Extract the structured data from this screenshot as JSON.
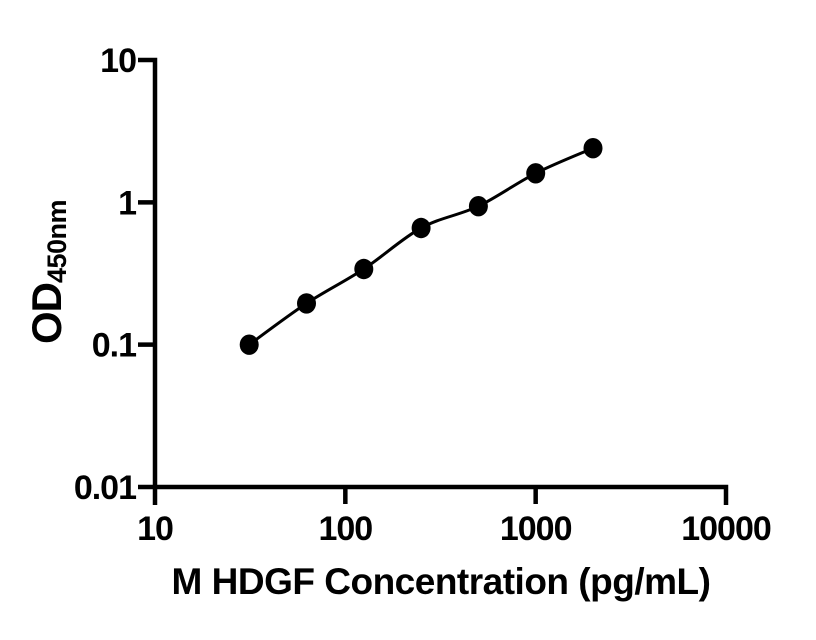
{
  "figure": {
    "background_color": "#ffffff",
    "foreground_color": "#000000"
  },
  "chart_data": {
    "type": "scatter",
    "title": "",
    "xlabel": "M HDGF Concentration (pg/mL)",
    "ylabel_main": "OD",
    "ylabel_sub": "450nm",
    "xscale": "log",
    "yscale": "log",
    "xlim": [
      10,
      10000
    ],
    "ylim": [
      0.01,
      10
    ],
    "grid": false,
    "legend_position": "none",
    "marker_style": "filled-circle",
    "marker_color": "#000000",
    "line_color": "#000000",
    "x_ticks": [
      {
        "value": 10,
        "label": "10"
      },
      {
        "value": 100,
        "label": "100"
      },
      {
        "value": 1000,
        "label": "1000"
      },
      {
        "value": 10000,
        "label": "10000"
      }
    ],
    "y_ticks": [
      {
        "value": 10,
        "label": "10"
      },
      {
        "value": 1,
        "label": "1"
      },
      {
        "value": 0.1,
        "label": "0.1"
      },
      {
        "value": 0.01,
        "label": "0.01"
      }
    ],
    "points": [
      {
        "x": 31.25,
        "y": 0.1
      },
      {
        "x": 62.5,
        "y": 0.195
      },
      {
        "x": 125,
        "y": 0.34
      },
      {
        "x": 250,
        "y": 0.66
      },
      {
        "x": 500,
        "y": 0.94
      },
      {
        "x": 1000,
        "y": 1.6
      },
      {
        "x": 2000,
        "y": 2.4
      }
    ]
  }
}
